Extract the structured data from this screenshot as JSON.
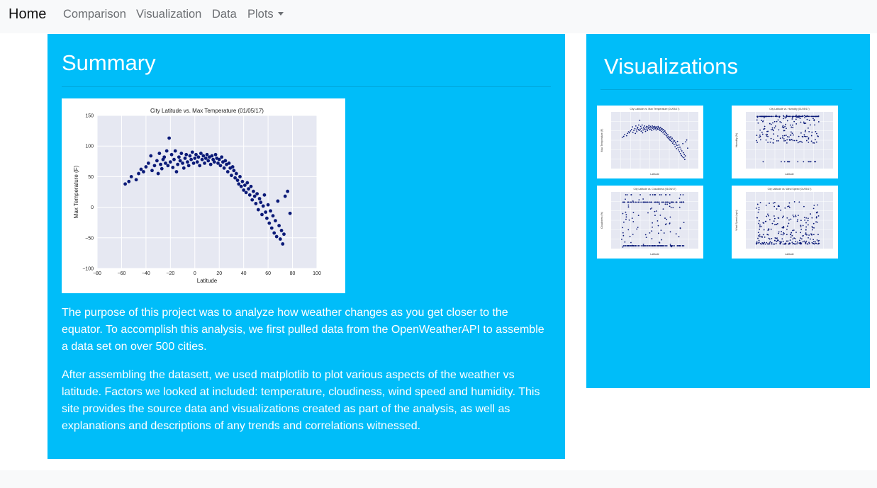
{
  "nav": {
    "brand": "Home",
    "links": [
      "Comparison",
      "Visualization",
      "Data",
      "Plots"
    ]
  },
  "summary": {
    "title": "Summary",
    "paragraph1": "The purpose of this project was to analyze how weather changes as you get closer to the equator. To accomplish this analysis, we first pulled data from the OpenWeatherAPI to assemble a data set on over 500 cities.",
    "paragraph2": "After assembling the datasett, we used matplotlib to plot various aspects of the weather vs latitude. Factors we looked at included: temperature, cloudiness, wind speed and humidity. This site provides the source data and visualizations created as part of the analysis, as well as explanations and descriptions of any trends and correlations witnessed."
  },
  "visualizations": {
    "title": "Visualizations",
    "thumbnails": [
      {
        "title": "City Latitude vs. Max Temperature (01/05/17)",
        "ylabel": "Max Temperature (F)",
        "xlabel": "Latitude"
      },
      {
        "title": "City Latitude vs. Humidity (01/05/17)",
        "ylabel": "Humidity (%)",
        "xlabel": "Latitude"
      },
      {
        "title": "City Latitude vs. Cloudiness (01/05/17)",
        "ylabel": "Cloudiness (%)",
        "xlabel": "Latitude"
      },
      {
        "title": "City Latitude vs. Wind Speed (01/05/17)",
        "ylabel": "Wind Speed (mph)",
        "xlabel": "Latitude"
      }
    ]
  },
  "colors": {
    "panel": "#00bdf9",
    "navbar": "#f8f9fa",
    "marker": "#0b1a78",
    "plot_bg": "#e6e8f2"
  },
  "chart_data": {
    "type": "scatter",
    "title": "City Latitude vs. Max Temperature (01/05/17)",
    "xlabel": "Latitude",
    "ylabel": "Max Temperature (F)",
    "xlim": [
      -80,
      100
    ],
    "ylim": [
      -100,
      150
    ],
    "xticks": [
      -80,
      -60,
      -40,
      -20,
      0,
      20,
      40,
      60,
      80,
      100
    ],
    "yticks": [
      -100,
      -50,
      0,
      50,
      100,
      150
    ],
    "grid": true,
    "series": [
      {
        "points": [
          [
            -57,
            38
          ],
          [
            -54,
            42
          ],
          [
            -52,
            50
          ],
          [
            -48,
            45
          ],
          [
            -46,
            55
          ],
          [
            -44,
            62
          ],
          [
            -42,
            58
          ],
          [
            -40,
            66
          ],
          [
            -38,
            72
          ],
          [
            -36,
            84
          ],
          [
            -35,
            60
          ],
          [
            -33,
            68
          ],
          [
            -31,
            76
          ],
          [
            -30,
            55
          ],
          [
            -29,
            88
          ],
          [
            -28,
            70
          ],
          [
            -27,
            63
          ],
          [
            -26,
            78
          ],
          [
            -25,
            82
          ],
          [
            -24,
            72
          ],
          [
            -23,
            92
          ],
          [
            -22,
            68
          ],
          [
            -21,
            113
          ],
          [
            -20,
            74
          ],
          [
            -19,
            86
          ],
          [
            -18,
            65
          ],
          [
            -17,
            78
          ],
          [
            -16,
            92
          ],
          [
            -15,
            58
          ],
          [
            -14,
            70
          ],
          [
            -13,
            82
          ],
          [
            -12,
            76
          ],
          [
            -11,
            88
          ],
          [
            -10,
            72
          ],
          [
            -9,
            64
          ],
          [
            -8,
            80
          ],
          [
            -7,
            86
          ],
          [
            -6,
            74
          ],
          [
            -5,
            68
          ],
          [
            -4,
            84
          ],
          [
            -3,
            78
          ],
          [
            -2,
            90
          ],
          [
            -1,
            72
          ],
          [
            0,
            80
          ],
          [
            1,
            86
          ],
          [
            2,
            74
          ],
          [
            3,
            82
          ],
          [
            4,
            68
          ],
          [
            5,
            88
          ],
          [
            6,
            78
          ],
          [
            7,
            84
          ],
          [
            8,
            72
          ],
          [
            9,
            80
          ],
          [
            10,
            86
          ],
          [
            11,
            76
          ],
          [
            12,
            82
          ],
          [
            13,
            70
          ],
          [
            14,
            84
          ],
          [
            15,
            78
          ],
          [
            16,
            74
          ],
          [
            17,
            86
          ],
          [
            18,
            80
          ],
          [
            19,
            72
          ],
          [
            20,
            78
          ],
          [
            21,
            68
          ],
          [
            22,
            82
          ],
          [
            23,
            74
          ],
          [
            24,
            64
          ],
          [
            25,
            76
          ],
          [
            26,
            70
          ],
          [
            27,
            58
          ],
          [
            28,
            72
          ],
          [
            29,
            64
          ],
          [
            30,
            52
          ],
          [
            31,
            66
          ],
          [
            32,
            60
          ],
          [
            33,
            48
          ],
          [
            34,
            55
          ],
          [
            35,
            44
          ],
          [
            36,
            38
          ],
          [
            37,
            50
          ],
          [
            38,
            34
          ],
          [
            39,
            42
          ],
          [
            40,
            28
          ],
          [
            41,
            36
          ],
          [
            42,
            24
          ],
          [
            43,
            40
          ],
          [
            44,
            30
          ],
          [
            45,
            20
          ],
          [
            46,
            34
          ],
          [
            47,
            12
          ],
          [
            48,
            26
          ],
          [
            49,
            18
          ],
          [
            50,
            6
          ],
          [
            51,
            22
          ],
          [
            52,
            -4
          ],
          [
            53,
            14
          ],
          [
            54,
            8
          ],
          [
            55,
            -12
          ],
          [
            56,
            2
          ],
          [
            57,
            20
          ],
          [
            58,
            -8
          ],
          [
            59,
            -18
          ],
          [
            60,
            4
          ],
          [
            61,
            -26
          ],
          [
            62,
            -6
          ],
          [
            63,
            -34
          ],
          [
            64,
            -14
          ],
          [
            65,
            -42
          ],
          [
            66,
            -22
          ],
          [
            67,
            -48
          ],
          [
            68,
            10
          ],
          [
            69,
            -30
          ],
          [
            70,
            -52
          ],
          [
            71,
            -38
          ],
          [
            72,
            -60
          ],
          [
            73,
            -44
          ],
          [
            74,
            18
          ],
          [
            76,
            26
          ],
          [
            78,
            -10
          ]
        ]
      }
    ]
  }
}
